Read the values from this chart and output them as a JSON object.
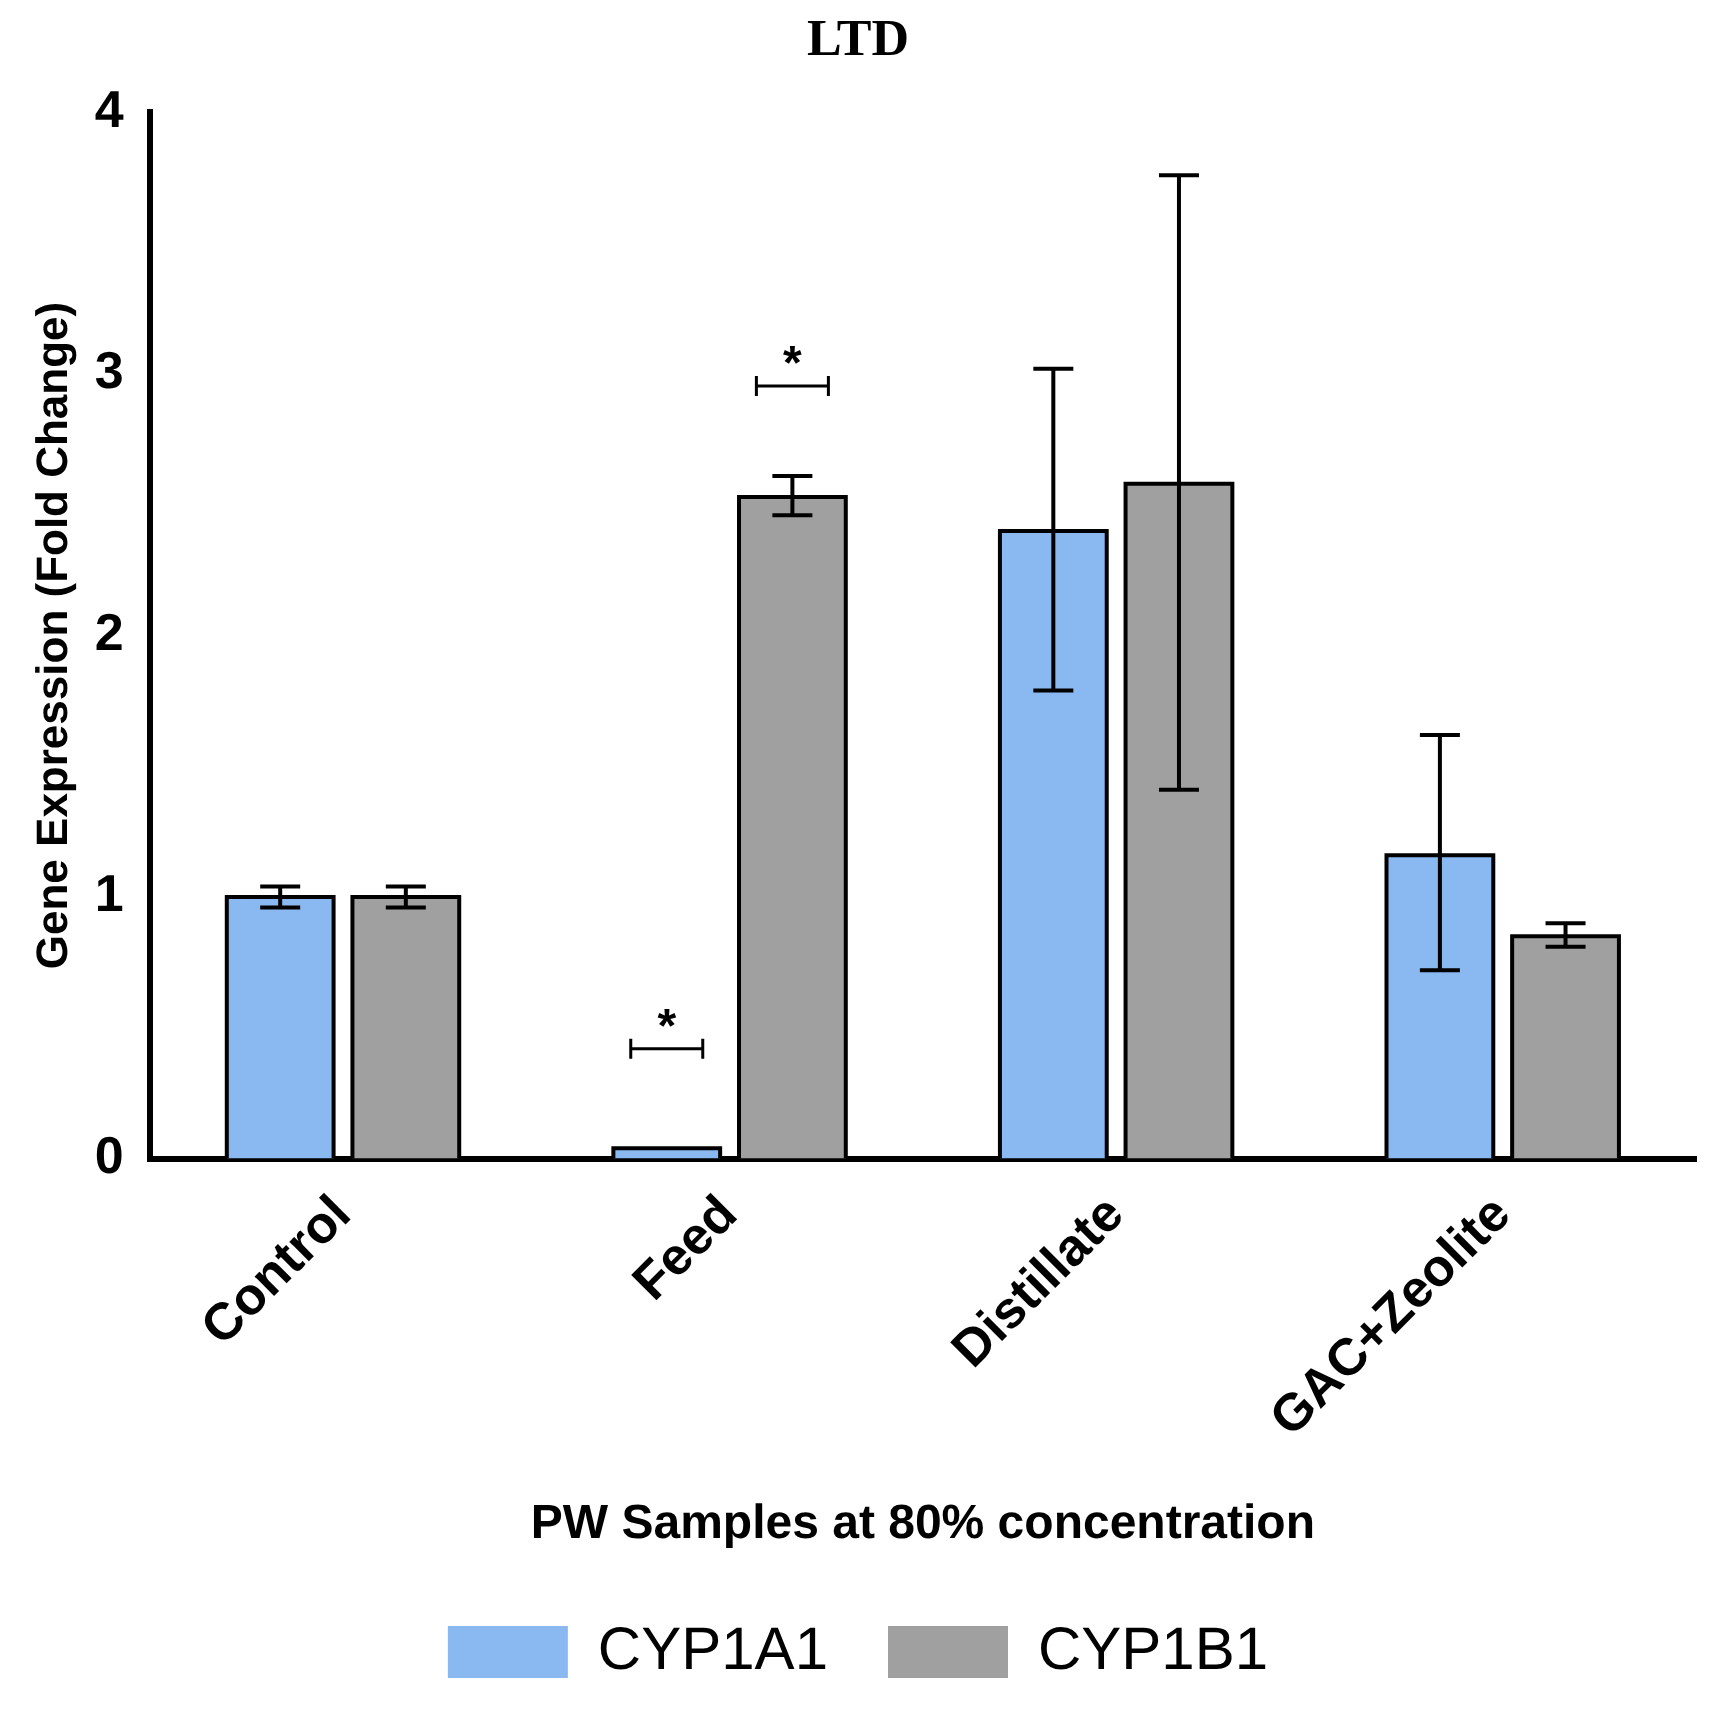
{
  "chart_data": {
    "type": "bar",
    "title": "LTD",
    "xlabel": "PW Samples at 80% concentration",
    "ylabel": "Gene Expression (Fold Change)",
    "categories": [
      "Control",
      "Feed",
      "Distillate",
      "GAC+Zeolite"
    ],
    "series": [
      {
        "name": "CYP1A1",
        "color": "#8ab8f0",
        "values": [
          1.0,
          0.04,
          2.4,
          1.16
        ],
        "errors": [
          [
            0.96,
            1.04
          ],
          null,
          [
            1.79,
            3.02
          ],
          [
            0.72,
            1.62
          ]
        ]
      },
      {
        "name": "CYP1B1",
        "color": "#a0a0a0",
        "values": [
          1.0,
          2.53,
          2.58,
          0.85
        ],
        "errors": [
          [
            0.96,
            1.04
          ],
          [
            2.46,
            2.61
          ],
          [
            1.41,
            3.76
          ],
          [
            0.81,
            0.9
          ]
        ]
      }
    ],
    "annotations": [
      {
        "text": "*",
        "x": "Feed",
        "y": 0.42
      },
      "*"
    ],
    "ylim": [
      0,
      4
    ],
    "yticks": [
      0,
      1,
      2,
      3,
      4
    ],
    "grid": false,
    "legend": "bottom"
  }
}
